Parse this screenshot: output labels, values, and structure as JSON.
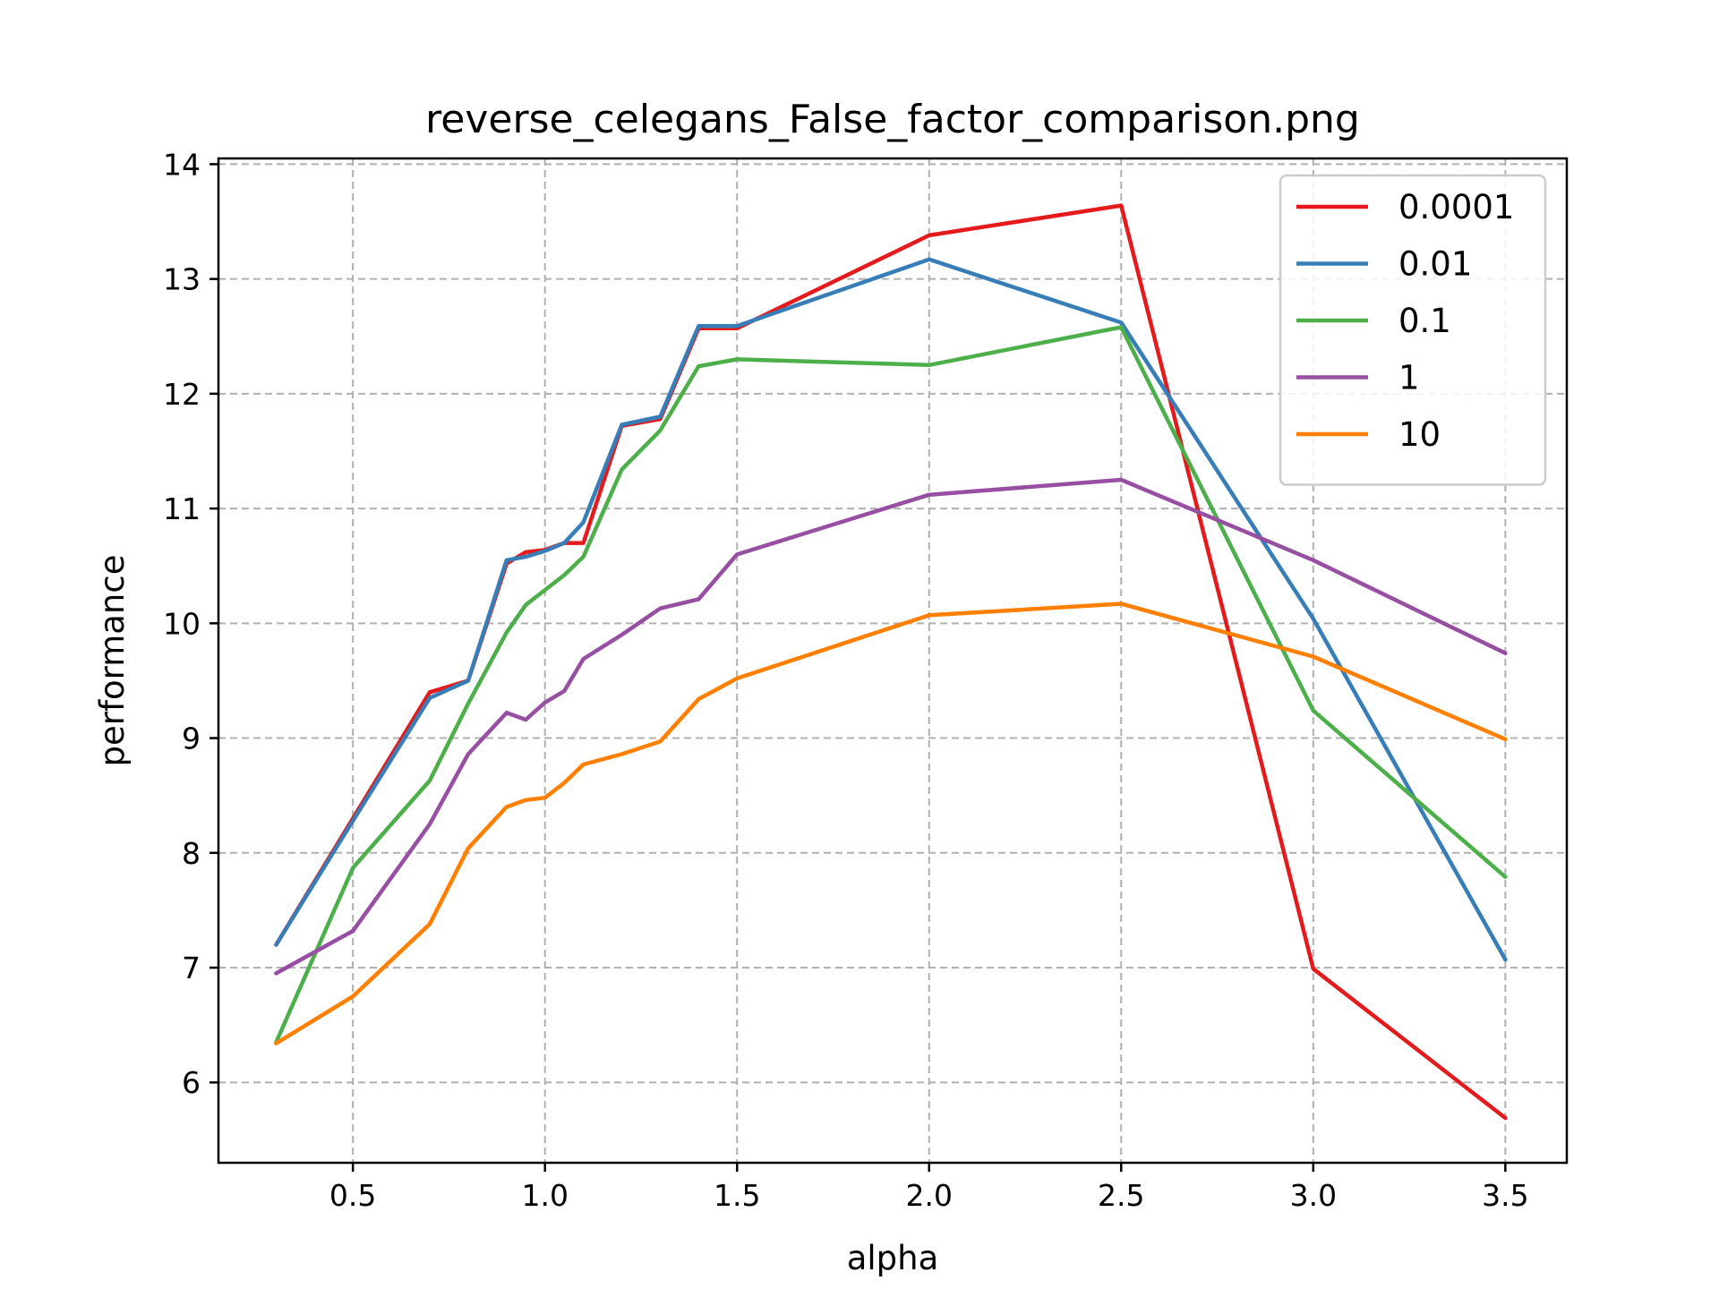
{
  "chart_data": {
    "type": "line",
    "title": "reverse_celegans_False_factor_comparison.png",
    "xlabel": "alpha",
    "ylabel": "performance",
    "xlim": [
      0.15,
      3.66
    ],
    "ylim": [
      5.3,
      14.05
    ],
    "xticks": [
      0.5,
      1.0,
      1.5,
      2.0,
      2.5,
      3.0,
      3.5
    ],
    "xtick_labels": [
      "0.5",
      "1.0",
      "1.5",
      "2.0",
      "2.5",
      "3.0",
      "3.5"
    ],
    "yticks": [
      6,
      7,
      8,
      9,
      10,
      11,
      12,
      13,
      14
    ],
    "ytick_labels": [
      "6",
      "7",
      "8",
      "9",
      "10",
      "11",
      "12",
      "13",
      "14"
    ],
    "grid": true,
    "legend_position": "top-right",
    "x": [
      0.3,
      0.5,
      0.7,
      0.8,
      0.9,
      0.95,
      1.0,
      1.05,
      1.1,
      1.2,
      1.3,
      1.4,
      1.5,
      2.0,
      2.5,
      3.0,
      3.5
    ],
    "series": [
      {
        "name": "0.0001",
        "color": "#e41a1c",
        "values": [
          7.2,
          8.3,
          9.4,
          9.5,
          10.52,
          10.62,
          10.64,
          10.7,
          10.7,
          11.72,
          11.78,
          12.57,
          12.57,
          13.38,
          13.64,
          6.99,
          5.69
        ]
      },
      {
        "name": "0.01",
        "color": "#377eb8",
        "values": [
          7.2,
          8.28,
          9.35,
          9.5,
          10.55,
          10.58,
          10.63,
          10.7,
          10.88,
          11.73,
          11.8,
          12.59,
          12.59,
          13.17,
          12.62,
          10.04,
          7.07
        ]
      },
      {
        "name": "0.1",
        "color": "#4daf4a",
        "values": [
          6.35,
          7.87,
          8.63,
          9.3,
          9.92,
          10.16,
          10.29,
          10.42,
          10.58,
          11.34,
          11.68,
          12.24,
          12.3,
          12.25,
          12.58,
          9.24,
          7.79
        ]
      },
      {
        "name": "1",
        "color": "#984ea3",
        "values": [
          6.95,
          7.32,
          8.25,
          8.86,
          9.22,
          9.16,
          9.31,
          9.41,
          9.69,
          9.9,
          10.13,
          10.21,
          10.6,
          11.12,
          11.25,
          10.55,
          9.74
        ]
      },
      {
        "name": "10",
        "color": "#ff7f00",
        "values": [
          6.34,
          6.75,
          7.38,
          8.04,
          8.4,
          8.46,
          8.48,
          8.61,
          8.77,
          8.86,
          8.97,
          9.34,
          9.52,
          10.07,
          10.17,
          9.71,
          8.99
        ]
      }
    ]
  }
}
